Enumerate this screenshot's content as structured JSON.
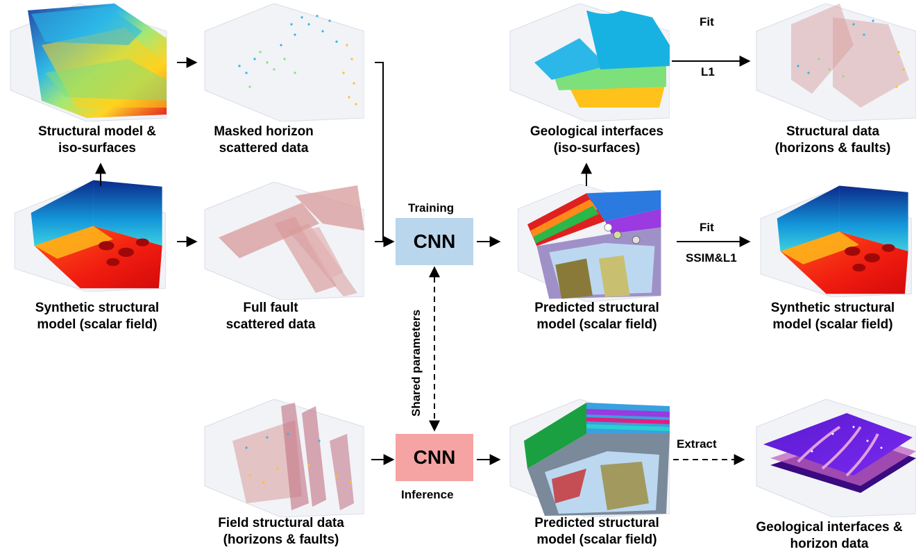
{
  "panels": {
    "structural_model": {
      "line1": "Structural model &",
      "line2": "iso-surfaces"
    },
    "masked_horizon": {
      "line1": "Masked  horizon",
      "line2": "scattered data"
    },
    "geo_interfaces_top": {
      "line1": "Geological interfaces",
      "line2": "(iso-surfaces)"
    },
    "structural_data_top": {
      "line1": "Structural data",
      "line2": "(horizons & faults)"
    },
    "synthetic_left": {
      "line1": "Synthetic structural",
      "line2": "model (scalar field)"
    },
    "full_fault": {
      "line1": "Full fault",
      "line2": "scattered data"
    },
    "predicted_mid": {
      "line1": "Predicted structural",
      "line2": "model (scalar field)"
    },
    "synthetic_right": {
      "line1": "Synthetic structural",
      "line2": "model (scalar field)"
    },
    "field_data": {
      "line1": "Field structural data",
      "line2": "(horizons & faults)"
    },
    "predicted_bottom": {
      "line1": "Predicted structural",
      "line2": "model (scalar field)"
    },
    "geo_interfaces_bottom": {
      "line1": "Geological interfaces &",
      "line2": "horizon data"
    }
  },
  "cnn_training": {
    "label": "CNN",
    "caption": "Training",
    "color": "#b9d6ec"
  },
  "cnn_inference": {
    "label": "CNN",
    "caption": "Inference",
    "color": "#f6a3a3"
  },
  "arrows": {
    "fit_top": "Fit",
    "loss_top": "L1",
    "fit_mid": "Fit",
    "loss_mid": "SSIM&L1",
    "extract": "Extract",
    "shared": "Shared parameters"
  }
}
